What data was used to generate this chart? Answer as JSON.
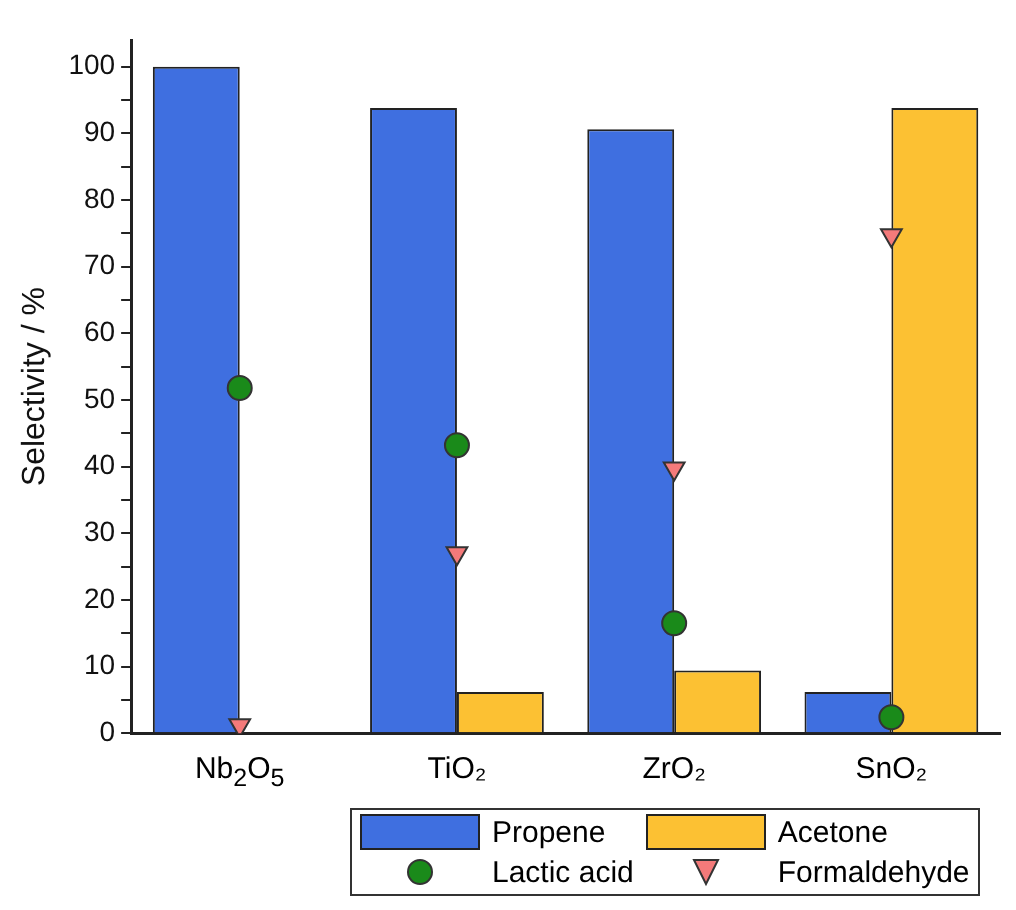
{
  "chart_data": {
    "type": "bar",
    "ylabel": "Selectivity / %",
    "categories": [
      "Nb$_{2}$O$_{5}$",
      "TiO₂",
      "ZrO₂",
      "SnO₂"
    ],
    "series": [
      {
        "name": "Propene",
        "color": "#3f6fe0",
        "values": [
          100,
          93.8,
          90.6,
          6.2
        ]
      },
      {
        "name": "Acetone",
        "color": "#fcc133",
        "values": [
          null,
          6.2,
          9.4,
          93.8
        ]
      },
      {
        "name": "Lactic acid",
        "type": "scatter",
        "marker": "circle",
        "color": "#1a8a1a",
        "x": [
          "Nb$_{2}$O$_{5}$",
          "TiO₂",
          "ZrO₂",
          "SnO₂"
        ],
        "values": [
          51.8,
          43.2,
          16.5,
          2.4
        ]
      },
      {
        "name": "Formaldehyde",
        "type": "scatter",
        "marker": "triangle",
        "color": "#f47a7a",
        "x": [
          "Nb$_{2}$O$_{5}$",
          "TiO₂",
          "ZrO₂",
          "SnO₂"
        ],
        "values": [
          1.2,
          27,
          39.7,
          74.7
        ]
      }
    ],
    "ylim": [
      0,
      104
    ],
    "yticks": [
      0,
      {
        "value": 5,
        "label": null
      },
      10,
      {
        "value": 15,
        "label": null
      },
      20,
      {
        "value": 25,
        "label": null
      },
      30,
      {
        "value": 35,
        "label": null
      },
      40,
      {
        "value": 45,
        "label": null
      },
      50,
      {
        "value": 55,
        "label": null
      },
      60,
      {
        "value": 65,
        "label": null
      },
      70,
      {
        "value": 75,
        "label": null
      },
      80,
      {
        "value": 85,
        "label": null
      },
      90,
      {
        "value": 95,
        "label": null
      },
      100
    ],
    "grid": false,
    "legend": "bottom"
  }
}
